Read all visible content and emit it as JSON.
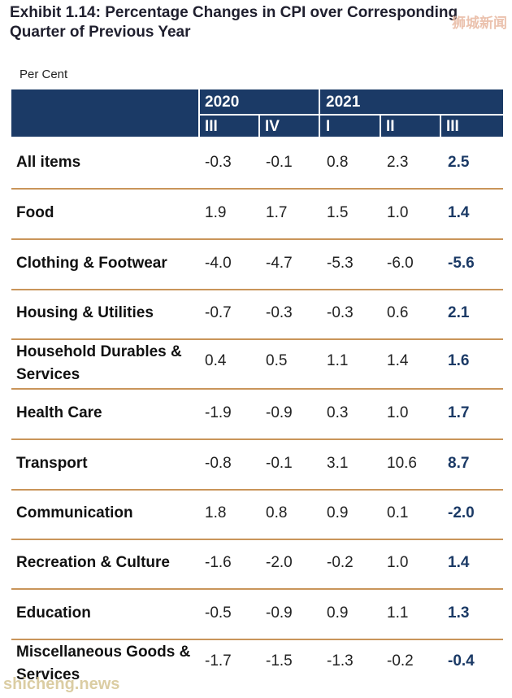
{
  "title": "Exhibit 1.14: Percentage Changes in CPI over Corresponding Quarter of Previous Year",
  "watermark_top": "狮城新闻",
  "watermark_bottom": "shicheng.news",
  "unit_label": "Per Cent",
  "years": [
    "2020",
    "2021"
  ],
  "quarters": [
    "III",
    "IV",
    "I",
    "II",
    "III"
  ],
  "rows": [
    {
      "label": "All items",
      "values": [
        "-0.3",
        "-0.1",
        "0.8",
        "2.3",
        "2.5"
      ]
    },
    {
      "label": "Food",
      "values": [
        "1.9",
        "1.7",
        "1.5",
        "1.0",
        "1.4"
      ]
    },
    {
      "label": "Clothing & Footwear",
      "values": [
        "-4.0",
        "-4.7",
        "-5.3",
        "-6.0",
        "-5.6"
      ]
    },
    {
      "label": "Housing & Utilities",
      "values": [
        "-0.7",
        "-0.3",
        "-0.3",
        "0.6",
        "2.1"
      ]
    },
    {
      "label": "Household Durables & Services",
      "values": [
        "0.4",
        "0.5",
        "1.1",
        "1.4",
        "1.6"
      ]
    },
    {
      "label": "Health Care",
      "values": [
        "-1.9",
        "-0.9",
        "0.3",
        "1.0",
        "1.7"
      ]
    },
    {
      "label": "Transport",
      "values": [
        "-0.8",
        "-0.1",
        "3.1",
        "10.6",
        "8.7"
      ]
    },
    {
      "label": "Communication",
      "values": [
        "1.8",
        "0.8",
        "0.9",
        "0.1",
        "-2.0"
      ]
    },
    {
      "label": "Recreation & Culture",
      "values": [
        "-1.6",
        "-2.0",
        "-0.2",
        "1.0",
        "1.4"
      ]
    },
    {
      "label": "Education",
      "values": [
        "-0.5",
        "-0.9",
        "0.9",
        "1.1",
        "1.3"
      ]
    },
    {
      "label": "Miscellaneous Goods & Services",
      "values": [
        "-1.7",
        "-1.5",
        "-1.3",
        "-0.2",
        "-0.4"
      ]
    }
  ],
  "colors": {
    "header_bg": "#1b3a66",
    "rule": "#c9955a",
    "emphasis": "#1b3a66"
  }
}
